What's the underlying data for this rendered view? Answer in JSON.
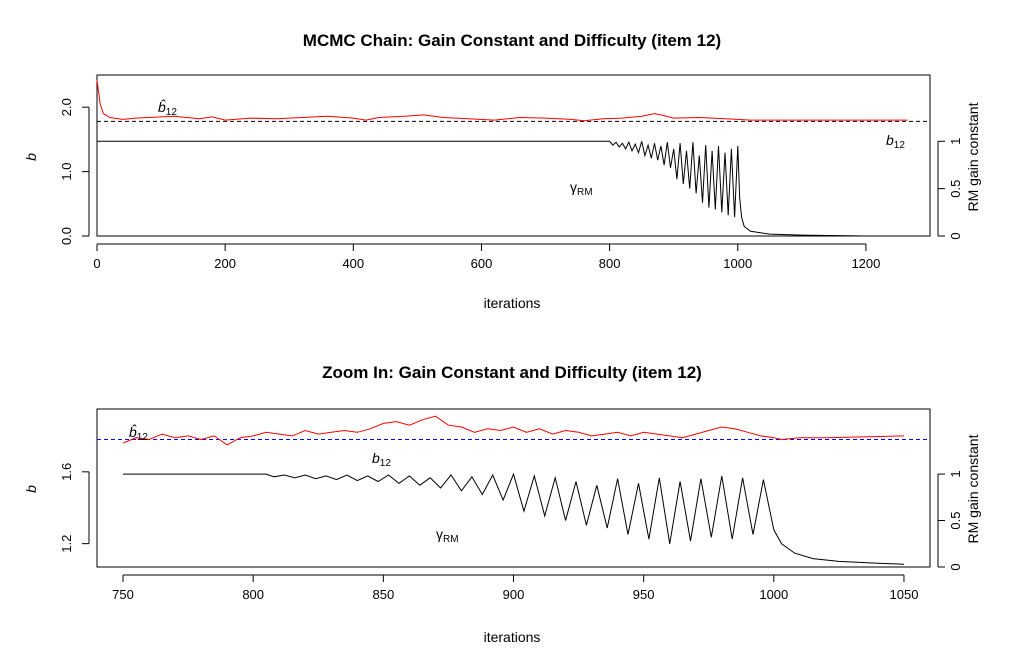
{
  "chart_data": [
    {
      "type": "line",
      "title": "MCMC Chain: Gain Constant and Difficulty (item 12)",
      "xlabel": "iterations",
      "ylabel": "b",
      "y2label": "RM gain constant",
      "xlim": [
        0,
        1300
      ],
      "ylim": [
        0,
        2.5
      ],
      "y2lim": [
        0,
        1.7
      ],
      "xticks": [
        0,
        200,
        400,
        600,
        800,
        1000,
        1200
      ],
      "yticks": [
        0.0,
        1.0,
        2.0
      ],
      "ytick_labels": [
        "0.0",
        "1.0",
        "2.0"
      ],
      "y2ticks": [
        0,
        0.5,
        1
      ],
      "y2tick_labels": [
        "0",
        "0.5",
        "1"
      ],
      "reference_line": {
        "label": "b",
        "label_sub": "12",
        "y": 1.78,
        "color": "#000000",
        "style": "dashed",
        "label_color": "#0000ff"
      },
      "series": [
        {
          "label": "b̂",
          "label_sub": "12",
          "color": "#ff0000",
          "axis": "left",
          "x": [
            0,
            5,
            10,
            20,
            40,
            60,
            80,
            100,
            120,
            140,
            160,
            180,
            200,
            240,
            280,
            320,
            360,
            400,
            420,
            440,
            480,
            510,
            540,
            580,
            620,
            660,
            700,
            740,
            760,
            790,
            820,
            850,
            870,
            880,
            900,
            940,
            980,
            1000,
            1020,
            1100,
            1200,
            1265
          ],
          "y": [
            2.42,
            2.05,
            1.9,
            1.84,
            1.81,
            1.83,
            1.84,
            1.85,
            1.86,
            1.84,
            1.82,
            1.85,
            1.8,
            1.83,
            1.82,
            1.84,
            1.86,
            1.83,
            1.8,
            1.84,
            1.86,
            1.88,
            1.84,
            1.82,
            1.8,
            1.84,
            1.83,
            1.81,
            1.79,
            1.82,
            1.83,
            1.86,
            1.9,
            1.88,
            1.83,
            1.84,
            1.82,
            1.81,
            1.8,
            1.8,
            1.8,
            1.8
          ]
        },
        {
          "label": "γ",
          "label_sub": "RM",
          "color": "#000000",
          "axis": "right",
          "x": [
            0,
            800,
            805,
            810,
            815,
            820,
            825,
            830,
            835,
            840,
            845,
            850,
            855,
            860,
            865,
            870,
            875,
            880,
            885,
            890,
            895,
            900,
            905,
            910,
            915,
            920,
            925,
            930,
            935,
            940,
            945,
            950,
            955,
            960,
            965,
            970,
            975,
            980,
            985,
            990,
            995,
            1000,
            1003,
            1006,
            1010,
            1020,
            1050,
            1100,
            1200,
            1265
          ],
          "y": [
            1.0,
            1.0,
            0.96,
            0.99,
            0.94,
            0.98,
            0.92,
            0.99,
            0.9,
            0.97,
            0.88,
            1.0,
            0.85,
            0.96,
            0.82,
            0.98,
            0.8,
            0.95,
            0.75,
            0.99,
            0.72,
            0.92,
            0.6,
            0.98,
            0.55,
            0.9,
            0.5,
            0.99,
            0.45,
            0.85,
            0.35,
            0.96,
            0.3,
            0.9,
            0.28,
            0.95,
            0.25,
            0.88,
            0.22,
            0.92,
            0.2,
            0.95,
            0.4,
            0.2,
            0.1,
            0.05,
            0.02,
            0.01,
            0.0,
            0.0
          ]
        }
      ]
    },
    {
      "type": "line",
      "title": "Zoom In: Gain Constant and Difficulty (item 12)",
      "xlabel": "iterations",
      "ylabel": "b",
      "y2label": "RM gain constant",
      "xlim": [
        740,
        1060
      ],
      "ylim": [
        1.07,
        1.95
      ],
      "y2lim": [
        0,
        1.7
      ],
      "xticks": [
        750,
        800,
        850,
        900,
        950,
        1000,
        1050
      ],
      "yticks": [
        1.2,
        1.6
      ],
      "ytick_labels": [
        "1.2",
        "1.6"
      ],
      "y2ticks": [
        0,
        0.5,
        1
      ],
      "y2tick_labels": [
        "0",
        "0.5",
        "1"
      ],
      "reference_line": {
        "label": "b",
        "label_sub": "12",
        "y": 1.78,
        "color": "#0000ff",
        "style": "dashed",
        "label_color": "#0000ff"
      },
      "series": [
        {
          "label": "b̂",
          "label_sub": "12",
          "color": "#ff0000",
          "axis": "left",
          "x": [
            750,
            755,
            760,
            765,
            770,
            775,
            780,
            785,
            790,
            795,
            800,
            805,
            810,
            815,
            820,
            825,
            830,
            835,
            840,
            845,
            850,
            855,
            860,
            865,
            870,
            875,
            880,
            885,
            890,
            895,
            900,
            905,
            910,
            915,
            920,
            925,
            930,
            935,
            940,
            945,
            950,
            955,
            960,
            965,
            970,
            975,
            980,
            985,
            990,
            995,
            1000,
            1003,
            1010,
            1020,
            1050
          ],
          "y": [
            1.76,
            1.79,
            1.78,
            1.81,
            1.79,
            1.8,
            1.78,
            1.8,
            1.75,
            1.79,
            1.8,
            1.82,
            1.81,
            1.8,
            1.83,
            1.81,
            1.82,
            1.83,
            1.82,
            1.84,
            1.87,
            1.88,
            1.86,
            1.89,
            1.91,
            1.86,
            1.85,
            1.82,
            1.84,
            1.83,
            1.85,
            1.82,
            1.84,
            1.81,
            1.83,
            1.82,
            1.8,
            1.81,
            1.82,
            1.8,
            1.82,
            1.81,
            1.8,
            1.79,
            1.81,
            1.83,
            1.85,
            1.84,
            1.82,
            1.8,
            1.79,
            1.78,
            1.79,
            1.79,
            1.8
          ]
        },
        {
          "label": "γ",
          "label_sub": "RM",
          "color": "#000000",
          "axis": "right",
          "x": [
            750,
            805,
            808,
            812,
            816,
            820,
            824,
            828,
            832,
            836,
            840,
            844,
            848,
            852,
            856,
            860,
            864,
            868,
            872,
            876,
            880,
            884,
            888,
            892,
            896,
            900,
            904,
            908,
            912,
            916,
            920,
            924,
            928,
            932,
            936,
            940,
            944,
            948,
            952,
            956,
            960,
            964,
            968,
            972,
            976,
            980,
            984,
            988,
            992,
            996,
            1000,
            1003,
            1008,
            1015,
            1025,
            1040,
            1050
          ],
          "y": [
            1.0,
            1.0,
            0.97,
            0.99,
            0.96,
            0.99,
            0.95,
            0.98,
            0.94,
            0.99,
            0.93,
            0.98,
            0.92,
            0.99,
            0.9,
            0.98,
            0.88,
            0.96,
            0.85,
            0.99,
            0.82,
            0.97,
            0.78,
            0.99,
            0.72,
            1.0,
            0.6,
            0.98,
            0.55,
            0.96,
            0.5,
            0.92,
            0.45,
            0.88,
            0.42,
            0.95,
            0.35,
            0.9,
            0.3,
            0.96,
            0.25,
            0.92,
            0.28,
            0.95,
            0.32,
            0.98,
            0.3,
            0.96,
            0.35,
            0.94,
            0.4,
            0.25,
            0.15,
            0.09,
            0.06,
            0.04,
            0.03
          ]
        }
      ]
    }
  ]
}
